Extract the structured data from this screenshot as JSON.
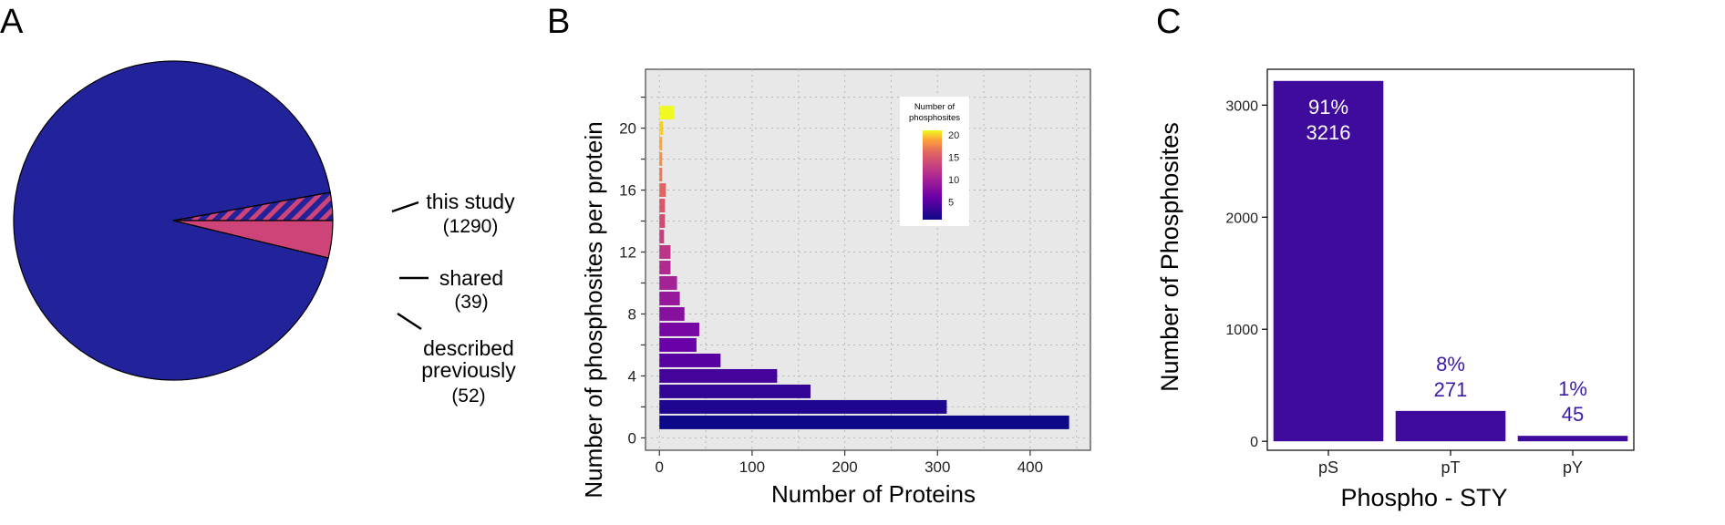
{
  "colors": {
    "navy": "#22229a",
    "pink": "#cf4478",
    "purple": "#3f0b9c",
    "label_purple": "#3c1aa8",
    "panel_bg": "#e8e8e8",
    "grid": "#b5b5b5"
  },
  "chart_data": [
    {
      "panel": "A",
      "type": "pie",
      "slices": [
        {
          "label": "this study",
          "count_label": "(1290)",
          "value": 1290,
          "color": "#22229a",
          "pattern": "none"
        },
        {
          "label": "shared",
          "count_label": "(39)",
          "value": 39,
          "color": "#22229a",
          "pattern": "hatched-pink"
        },
        {
          "label_lines": [
            "described",
            "previously"
          ],
          "count_label": "(52)",
          "value": 52,
          "color": "#cf4478",
          "pattern": "none"
        }
      ]
    },
    {
      "panel": "B",
      "type": "bar",
      "orientation": "horizontal",
      "xlabel": "Number of Proteins",
      "ylabel": "Number of phosphosites per protein",
      "xlim": [
        -15,
        465
      ],
      "ylim": [
        -0.8,
        23.8
      ],
      "xticks": [
        0,
        100,
        200,
        300,
        400
      ],
      "yticks": [
        0,
        4,
        8,
        12,
        16,
        20
      ],
      "grid": true,
      "y": [
        1,
        2,
        3,
        4,
        5,
        6,
        7,
        8,
        9,
        10,
        11,
        12,
        13,
        14,
        15,
        16,
        17,
        18,
        19,
        20,
        21
      ],
      "values": [
        442,
        310,
        163,
        127,
        66,
        40,
        43,
        27,
        22,
        19,
        12,
        12,
        5,
        6,
        6,
        7,
        3,
        3,
        3,
        4,
        16
      ],
      "legend": {
        "title_lines": [
          "Number of",
          "phosphosites"
        ],
        "ticks": [
          5,
          10,
          15,
          20
        ],
        "placement": "top-right"
      }
    },
    {
      "panel": "C",
      "type": "bar",
      "xlabel": "Phospho - STY",
      "ylabel": "Number of Phosphosites",
      "categories": [
        "pS",
        "pT",
        "pY"
      ],
      "values": [
        3216,
        271,
        45
      ],
      "labels": [
        {
          "percent": "91%",
          "count": "3216"
        },
        {
          "percent": "8%",
          "count": "271"
        },
        {
          "percent": "1%",
          "count": "45"
        }
      ],
      "ylim": [
        -80,
        3320
      ],
      "yticks": [
        0,
        1000,
        2000,
        3000
      ],
      "grid": false
    }
  ],
  "panel_labels": [
    "A",
    "B",
    "C"
  ]
}
